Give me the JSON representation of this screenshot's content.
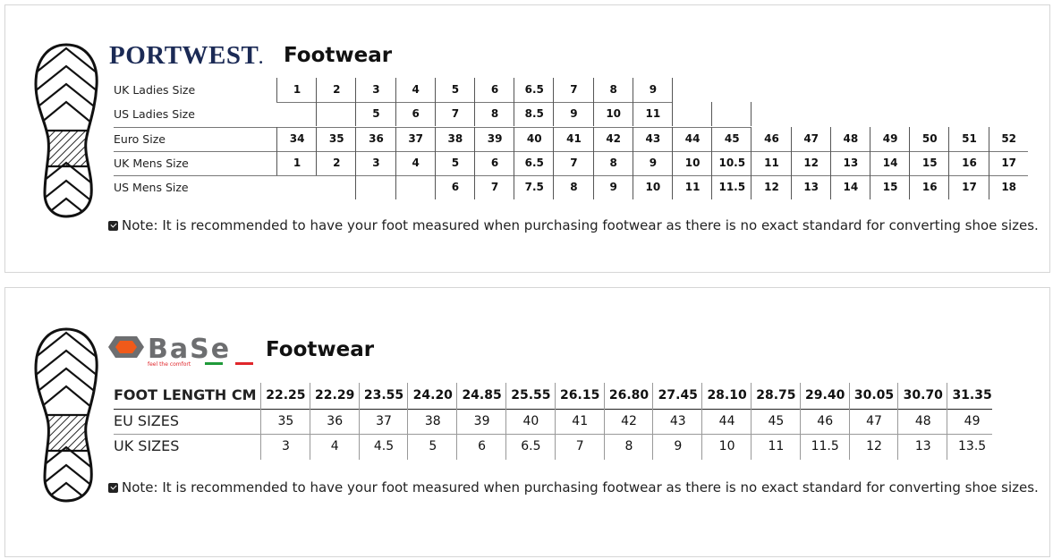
{
  "portwest": {
    "brand": "PORTWEST.",
    "title": "Footwear",
    "rows": [
      {
        "label": "UK Ladies Size",
        "values": [
          "1",
          "2",
          "3",
          "4",
          "5",
          "6",
          "6.5",
          "7",
          "8",
          "9",
          null,
          null,
          null,
          null,
          null,
          null,
          null,
          null,
          null
        ]
      },
      {
        "label": "US Ladies Size",
        "values": [
          null,
          "",
          "5",
          "6",
          "7",
          "8",
          "8.5",
          "9",
          "10",
          "11",
          "",
          "",
          null,
          null,
          null,
          null,
          null,
          null,
          null
        ]
      },
      {
        "label": "Euro Size",
        "values": [
          "34",
          "35",
          "36",
          "37",
          "38",
          "39",
          "40",
          "41",
          "42",
          "43",
          "44",
          "45",
          "46",
          "47",
          "48",
          "49",
          "50",
          "51",
          "52"
        ]
      },
      {
        "label": "UK Mens Size",
        "values": [
          "1",
          "2",
          "3",
          "4",
          "5",
          "6",
          "6.5",
          "7",
          "8",
          "9",
          "10",
          "10.5",
          "11",
          "12",
          "13",
          "14",
          "15",
          "16",
          "17"
        ]
      },
      {
        "label": "US Mens Size",
        "values": [
          null,
          null,
          "",
          "",
          "6",
          "7",
          "7.5",
          "8",
          "9",
          "10",
          "11",
          "11.5",
          "12",
          "13",
          "14",
          "15",
          "16",
          "17",
          "18"
        ]
      }
    ],
    "note": "Note: It is recommended to have your foot measured when purchasing footwear as there is no exact standard for converting shoe sizes."
  },
  "base": {
    "brand": "Base",
    "tagline": "feel the comfort",
    "title": "Footwear",
    "rows": [
      {
        "label": "FOOT LENGTH CM",
        "values": [
          "22.25",
          "22.29",
          "23.55",
          "24.20",
          "24.85",
          "25.55",
          "26.15",
          "26.80",
          "27.45",
          "28.10",
          "28.75",
          "29.40",
          "30.05",
          "30.70",
          "31.35"
        ]
      },
      {
        "label": "EU SIZES",
        "values": [
          "35",
          "36",
          "37",
          "38",
          "39",
          "40",
          "41",
          "42",
          "43",
          "44",
          "45",
          "46",
          "47",
          "48",
          "49"
        ]
      },
      {
        "label": "UK SIZES",
        "values": [
          "3",
          "4",
          "4.5",
          "5",
          "6",
          "6.5",
          "7",
          "8",
          "9",
          "10",
          "11",
          "11.5",
          "12",
          "13",
          "13.5"
        ]
      }
    ],
    "note": "Note: It is recommended to have your foot measured when purchasing footwear as there is no exact standard for converting shoe sizes.",
    "colors": {
      "orange": "#f05a1a",
      "gray": "#6d6e70",
      "green": "#1f9a3a",
      "red": "#e0262b"
    }
  },
  "icons": [
    "shoe-sole-icon",
    "checkbox-icon"
  ]
}
